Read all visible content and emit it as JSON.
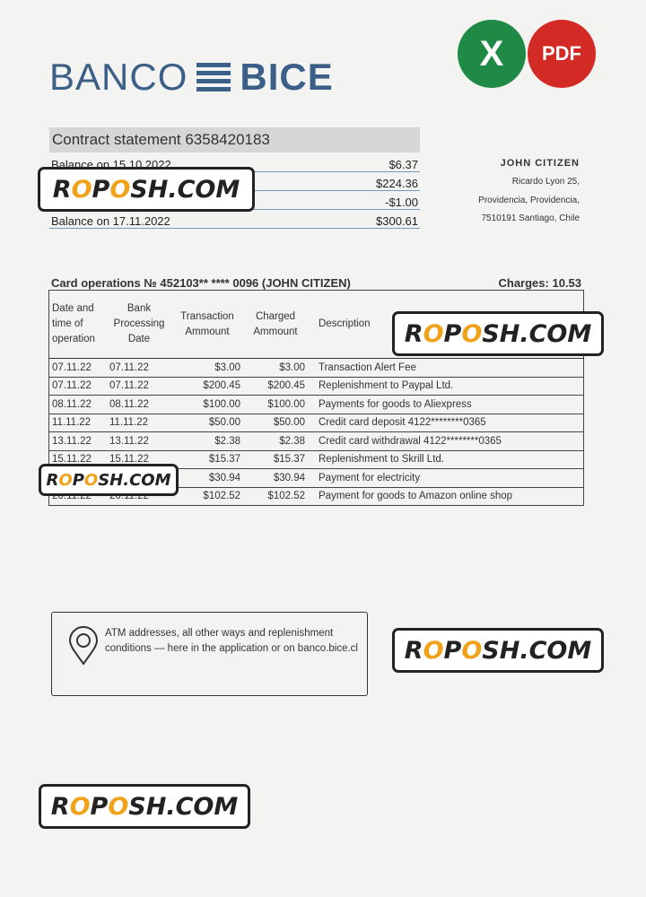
{
  "bank": {
    "name_left": "BANCO",
    "name_right": "BICE"
  },
  "export_icons": {
    "excel": "X",
    "pdf": "PDF",
    "excel_color": "#1f8a45",
    "pdf_color": "#d42a26"
  },
  "statement": {
    "title": "Contract statement 6358420183",
    "balances": [
      {
        "label": "Balance on 15.10.2022",
        "value": "$6.37"
      },
      {
        "label": "",
        "value": "$224.36"
      },
      {
        "label": "",
        "value": "-$1.00"
      },
      {
        "label": "Balance on 17.11.2022",
        "value": "$300.61"
      }
    ]
  },
  "customer": {
    "name": "JOHN CITIZEN",
    "line1": "Ricardo Lyon 25,",
    "line2": "Providencia, Providencia,",
    "line3": "7510191 Santiago, Chile"
  },
  "card_ops": {
    "title": "Card operations № 452103** **** 0096  (JOHN CITIZEN)",
    "charges": "Charges: 10.53",
    "headers": [
      "Date and time of operation",
      "Bank Processing Date",
      "Transaction Ammount",
      "Charged Ammount",
      "Description"
    ],
    "rows": [
      [
        "07.11.22",
        "07.11.22",
        "$3.00",
        "$3.00",
        "Transaction Alert Fee"
      ],
      [
        "07.11.22",
        "07.11.22",
        "$200.45",
        "$200.45",
        "Replenishment to Paypal Ltd."
      ],
      [
        "08.11.22",
        "08.11.22",
        "$100.00",
        "$100.00",
        "Payments for goods to Aliexpress"
      ],
      [
        "11.11.22",
        "11.11.22",
        "$50.00",
        "$50.00",
        "Credit card deposit 4122********0365"
      ],
      [
        "13.11.22",
        "13.11.22",
        "$2.38",
        "$2.38",
        "Credit card withdrawal 4122********0365"
      ],
      [
        "15.11.22",
        "15.11.22",
        "$15.37",
        "$15.37",
        "Replenishment to Skrill Ltd."
      ],
      [
        "",
        "",
        "$30.94",
        "$30.94",
        "Payment for electricity"
      ],
      [
        "20.11.22",
        "20.11.22",
        "$102.52",
        "$102.52",
        "Payment for goods to Amazon online shop"
      ]
    ]
  },
  "atm_info": {
    "text": "ATM addresses, all other ways and replenishment conditions — here in the application or on banco.bice.cl"
  },
  "watermark": {
    "p1": "R",
    "p2": "O",
    "p3": "P",
    "p4": "O",
    "p5": "SH.COM"
  }
}
